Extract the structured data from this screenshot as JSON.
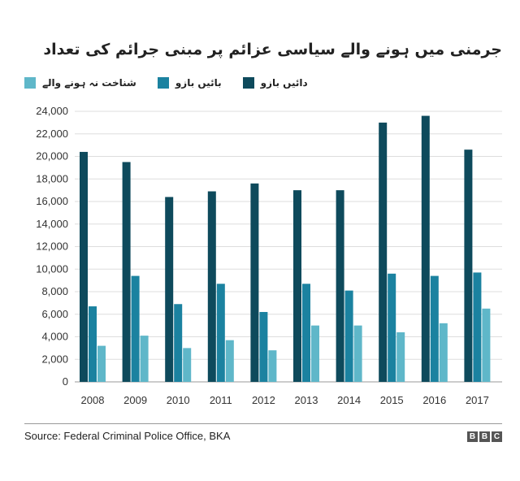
{
  "colors": {
    "series1": "#0e4a5c",
    "series2": "#1b82a0",
    "series3": "#5fb7c9",
    "grid": "#dddddd",
    "axis": "#999999"
  },
  "chart_data": {
    "type": "bar",
    "title": "جرمنی میں ہونے والے سیاسی عزائم پر مبنی جرائم کی تعداد",
    "categories": [
      "2008",
      "2009",
      "2010",
      "2011",
      "2012",
      "2013",
      "2014",
      "2015",
      "2016",
      "2017"
    ],
    "series": [
      {
        "name": "دائیں بازو",
        "values": [
          20400,
          19500,
          16400,
          16900,
          17600,
          17000,
          17000,
          23000,
          23600,
          20600
        ]
      },
      {
        "name": "بائیں بازو",
        "values": [
          6700,
          9400,
          6900,
          8700,
          6200,
          8700,
          8100,
          9600,
          9400,
          9700
        ]
      },
      {
        "name": "شناخت نہ ہونے والے",
        "values": [
          3200,
          4100,
          3000,
          3700,
          2800,
          5000,
          5000,
          4400,
          5200,
          6500
        ]
      }
    ],
    "yticks": [
      "0",
      "2,000",
      "4,000",
      "6,000",
      "8,000",
      "10,000",
      "12,000",
      "14,000",
      "16,000",
      "18,000",
      "20,000",
      "22,000",
      "24,000"
    ],
    "ylim": [
      0,
      24000
    ],
    "grid": true,
    "legend": "top"
  },
  "source": "Source: Federal Criminal Police Office, BKA",
  "logo": [
    "B",
    "B",
    "C"
  ]
}
